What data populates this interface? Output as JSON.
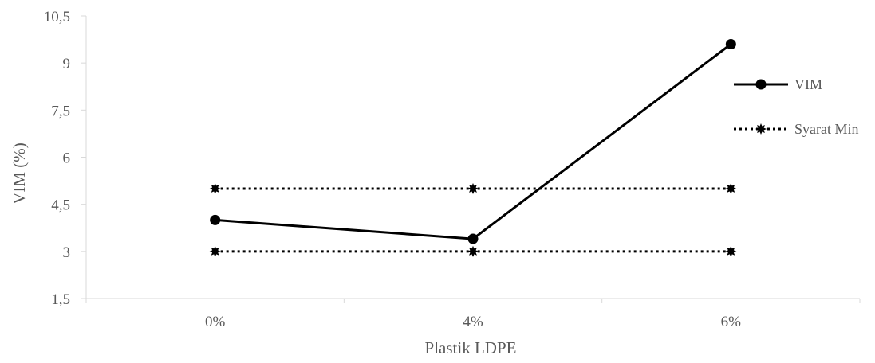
{
  "chart_data": {
    "type": "line",
    "categories": [
      "0%",
      "4%",
      "6%"
    ],
    "xlabel": "Plastik LDPE",
    "ylabel": "VIM (%)",
    "ylim": [
      1.5,
      10.5
    ],
    "yticks": [
      1.5,
      3,
      4.5,
      6,
      7.5,
      9,
      10.5
    ],
    "ytick_labels": [
      "1,5",
      "3",
      "4,5",
      "6",
      "7,5",
      "9",
      "10,5"
    ],
    "grid": false,
    "legend_position": "right",
    "series": [
      {
        "name": "VIM",
        "values": [
          4.0,
          3.4,
          9.6
        ],
        "style": "solid",
        "marker": "circle",
        "color": "#000000"
      },
      {
        "name": "Syarat Min",
        "values": [
          5,
          5,
          5
        ],
        "style": "dotted",
        "marker": "star",
        "color": "#000000"
      },
      {
        "values": [
          3,
          3,
          3
        ],
        "style": "dotted",
        "marker": "star",
        "color": "#000000"
      }
    ]
  }
}
